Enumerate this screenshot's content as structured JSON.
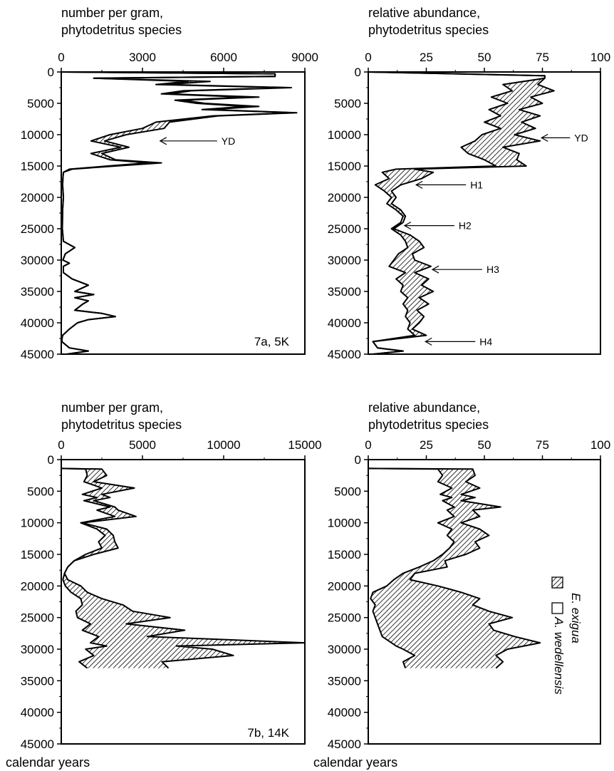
{
  "chart_data": [
    {
      "type": "area",
      "panel_label": "7a, 5K",
      "axis_title_lines": [
        "number per gram,",
        "phytodetritus species"
      ],
      "xlim": [
        0,
        9000
      ],
      "ylim": [
        0,
        45000
      ],
      "y_inverted": true,
      "x_ticks": [
        "0",
        "3000",
        "6000",
        "9000"
      ],
      "y_ticks": [
        "0",
        "5000",
        "10000",
        "15000",
        "20000",
        "25000",
        "30000",
        "35000",
        "40000",
        "45000"
      ],
      "series": [
        {
          "label_role": "E. exigua",
          "boundary_y": [
            0,
            300,
            700,
            1000,
            1500,
            2000,
            2500,
            3000,
            3500,
            4000,
            4500,
            5000,
            5500,
            6000,
            6500,
            7000,
            8000,
            9000,
            10000,
            11000,
            12000,
            13000,
            14000,
            14500,
            15000,
            15500,
            16000,
            17000,
            18000,
            20000,
            22000,
            25000,
            27000,
            28000,
            29000,
            30000,
            30500,
            31000,
            32000,
            33000,
            34000,
            35000,
            35500,
            36000,
            36500,
            37000,
            38000,
            38500,
            39000,
            39500,
            40000,
            41000,
            42000,
            42500,
            43000,
            44000,
            44500,
            45000
          ],
          "lower_x": [
            0,
            7900,
            7900,
            1200,
            4700,
            3500,
            8200,
            4500,
            3700,
            6800,
            4200,
            5000,
            6800,
            5200,
            8600,
            5600,
            3500,
            3000,
            1800,
            1100,
            2200,
            1100,
            1800,
            3200,
            1700,
            300,
            80,
            60,
            50,
            80,
            50,
            40,
            80,
            500,
            150,
            60,
            300,
            80,
            80,
            400,
            1000,
            500,
            1200,
            500,
            1000,
            800,
            500,
            1500,
            2000,
            1000,
            600,
            300,
            50,
            30,
            20,
            300,
            1000,
            200
          ],
          "upper_x": [
            0,
            7900,
            7900,
            1200,
            5500,
            3900,
            8500,
            4800,
            4000,
            7300,
            4500,
            5300,
            7300,
            5500,
            8700,
            5800,
            4000,
            3800,
            2400,
            1600,
            2500,
            1500,
            2000,
            3700,
            2000,
            400,
            80,
            60,
            50,
            80,
            50,
            40,
            80,
            500,
            150,
            60,
            300,
            80,
            80,
            400,
            1000,
            500,
            1200,
            500,
            1000,
            800,
            500,
            1500,
            2000,
            1000,
            600,
            300,
            50,
            30,
            20,
            300,
            1000,
            200
          ]
        }
      ],
      "annotations": [
        {
          "text": "YD",
          "y": 11000,
          "x": 3600
        }
      ]
    },
    {
      "type": "area",
      "axis_title_lines": [
        "relative abundance,",
        "phytodetritus species"
      ],
      "xlim": [
        0,
        100
      ],
      "ylim": [
        0,
        45000
      ],
      "y_inverted": true,
      "x_ticks": [
        "0",
        "25",
        "50",
        "75",
        "100"
      ],
      "y_ticks": [
        "0",
        "5000",
        "10000",
        "15000",
        "20000",
        "25000",
        "30000",
        "35000",
        "40000",
        "45000"
      ],
      "series": [
        {
          "label_role": "E. exigua",
          "boundary_y": [
            0,
            600,
            1000,
            2000,
            3000,
            4000,
            5000,
            6000,
            7000,
            8000,
            9000,
            10000,
            11000,
            12000,
            13000,
            14000,
            15000,
            15500,
            16000,
            17000,
            18000,
            19000,
            20000,
            21000,
            22000,
            23000,
            24000,
            25000,
            26000,
            27000,
            28000,
            29000,
            30000,
            31000,
            32000,
            33000,
            34000,
            35000,
            36000,
            37000,
            38000,
            39000,
            40000,
            41000,
            42000,
            43000,
            44000,
            44500,
            45000
          ],
          "lower_x": [
            0,
            76,
            76,
            58,
            62,
            53,
            60,
            52,
            57,
            50,
            57,
            49,
            46,
            40,
            43,
            50,
            55,
            12,
            6,
            9,
            3,
            7,
            10,
            8,
            12,
            15,
            14,
            10,
            14,
            16,
            17,
            13,
            11,
            9,
            16,
            12,
            15,
            14,
            17,
            15,
            17,
            16,
            18,
            17,
            20,
            2,
            4,
            15,
            2
          ],
          "upper_x": [
            0,
            76,
            76,
            73,
            80,
            70,
            75,
            65,
            74,
            66,
            72,
            63,
            74,
            58,
            65,
            64,
            68,
            20,
            28,
            23,
            14,
            10,
            12,
            10,
            14,
            16,
            15,
            11,
            18,
            22,
            24,
            19,
            20,
            27,
            20,
            26,
            23,
            28,
            22,
            26,
            21,
            24,
            22,
            19,
            25,
            2,
            4,
            15,
            2
          ]
        }
      ],
      "annotations": [
        {
          "text": "YD",
          "y": 10500,
          "x": 74
        },
        {
          "text": "H1",
          "y": 18000,
          "x": 20
        },
        {
          "text": "H2",
          "y": 24500,
          "x": 15
        },
        {
          "text": "H3",
          "y": 31500,
          "x": 27
        },
        {
          "text": "H4",
          "y": 43000,
          "x": 24
        }
      ]
    },
    {
      "type": "area",
      "panel_label": "7b, 14K",
      "axis_title_lines": [
        "number per gram,",
        "phytodetritus species"
      ],
      "xlim": [
        0,
        15000
      ],
      "ylim": [
        0,
        45000
      ],
      "y_inverted": true,
      "x_ticks": [
        "0",
        "5000",
        "10000",
        "15000"
      ],
      "y_ticks": [
        "0",
        "5000",
        "10000",
        "15000",
        "20000",
        "25000",
        "30000",
        "35000",
        "40000",
        "45000"
      ],
      "ylabel": "calendar years",
      "series": [
        {
          "label_role": "E. exigua",
          "boundary_y": [
            1400,
            1500,
            2500,
            3500,
            4500,
            5500,
            6000,
            6500,
            7500,
            8000,
            9000,
            10000,
            11000,
            12000,
            13000,
            14000,
            15000,
            16000,
            17000,
            18000,
            19000,
            20000,
            21000,
            22000,
            23000,
            24000,
            25000,
            26000,
            27000,
            28000,
            29000,
            29500,
            30000,
            31000,
            32000,
            33000
          ],
          "lower_x": [
            0,
            1500,
            1600,
            1400,
            2500,
            1300,
            2200,
            1400,
            3000,
            2200,
            3300,
            1200,
            2200,
            2700,
            2300,
            2500,
            1500,
            800,
            400,
            200,
            100,
            250,
            600,
            1200,
            1300,
            900,
            1000,
            1800,
            1300,
            2300,
            1800,
            2800,
            1500,
            2000,
            1100,
            1600
          ],
          "upper_x": [
            0,
            2500,
            2800,
            2000,
            4500,
            2500,
            3000,
            2000,
            3300,
            3500,
            4600,
            1300,
            2800,
            3200,
            3300,
            3500,
            2000,
            800,
            400,
            200,
            400,
            1200,
            1600,
            2500,
            3800,
            4400,
            6700,
            4000,
            7600,
            5300,
            15000,
            7100,
            9300,
            10600,
            6200,
            6600
          ]
        }
      ],
      "annotations": []
    },
    {
      "type": "area",
      "axis_title_lines": [
        "relative abundance,",
        "phytodetritus species"
      ],
      "xlim": [
        0,
        100
      ],
      "ylim": [
        0,
        45000
      ],
      "y_inverted": true,
      "x_ticks": [
        "0",
        "25",
        "50",
        "75",
        "100"
      ],
      "y_ticks": [
        "0",
        "5000",
        "10000",
        "15000",
        "20000",
        "25000",
        "30000",
        "35000",
        "40000",
        "45000"
      ],
      "ylabel": "calendar years",
      "series": [
        {
          "label_role": "E. exigua",
          "boundary_y": [
            1400,
            1500,
            2500,
            3500,
            4500,
            5500,
            6000,
            6500,
            7500,
            8000,
            9000,
            10000,
            11000,
            12000,
            13000,
            14000,
            15000,
            16000,
            17000,
            18000,
            19000,
            20000,
            21000,
            22000,
            23000,
            24000,
            25000,
            26000,
            27000,
            28000,
            29000,
            29500,
            30000,
            31000,
            32000,
            33000
          ],
          "lower_x": [
            0,
            30,
            32,
            30,
            36,
            31,
            36,
            32,
            37,
            34,
            37,
            30,
            36,
            34,
            37,
            35,
            32,
            28,
            22,
            15,
            11,
            8,
            2,
            1,
            3,
            2,
            3,
            4,
            5,
            6,
            10,
            12,
            15,
            20,
            15,
            16
          ],
          "upper_x": [
            0,
            45,
            46,
            42,
            48,
            40,
            46,
            40,
            57,
            45,
            48,
            40,
            48,
            52,
            46,
            48,
            42,
            33,
            34,
            20,
            18,
            30,
            40,
            48,
            45,
            52,
            62,
            52,
            54,
            63,
            74,
            67,
            60,
            55,
            58,
            55
          ]
        }
      ],
      "annotations": [],
      "legend": {
        "placement": "right-middle",
        "entries": [
          {
            "label": "E. exigua",
            "swatch": "hatched"
          },
          {
            "label": "A. wedellensis",
            "swatch": "open"
          }
        ]
      }
    }
  ]
}
